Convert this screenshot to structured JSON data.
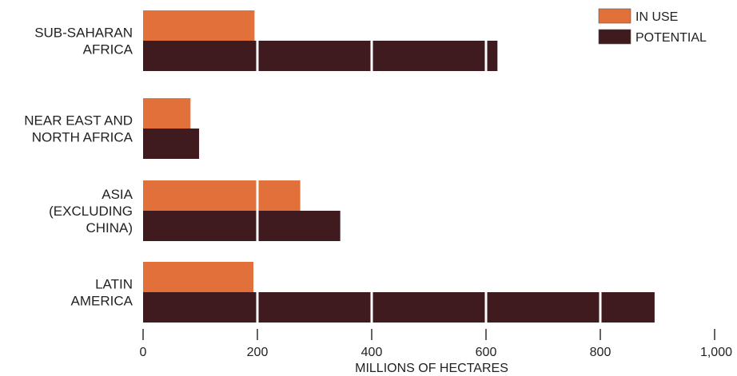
{
  "chart_data": {
    "type": "bar",
    "orientation": "horizontal",
    "categories": [
      [
        "SUB-SAHARAN",
        "AFRICA"
      ],
      [
        "NEAR EAST AND",
        "NORTH AFRICA"
      ],
      [
        "ASIA",
        "(EXCLUDING",
        "CHINA)"
      ],
      [
        "LATIN",
        "AMERICA"
      ]
    ],
    "series": [
      {
        "name": "IN USE",
        "color": "#e2703a",
        "values": [
          195,
          83,
          275,
          193
        ]
      },
      {
        "name": "POTENTIAL",
        "color": "#3f1b1f",
        "values": [
          620,
          98,
          345,
          895
        ]
      }
    ],
    "xlabel": "MILLIONS OF HECTARES",
    "xlim": [
      0,
      1000
    ],
    "xticks": [
      0,
      200,
      400,
      600,
      800,
      1000
    ],
    "xtick_labels": [
      "0",
      "200",
      "400",
      "600",
      "800",
      "1,000"
    ],
    "grid": false,
    "legend_position": "top-right"
  }
}
